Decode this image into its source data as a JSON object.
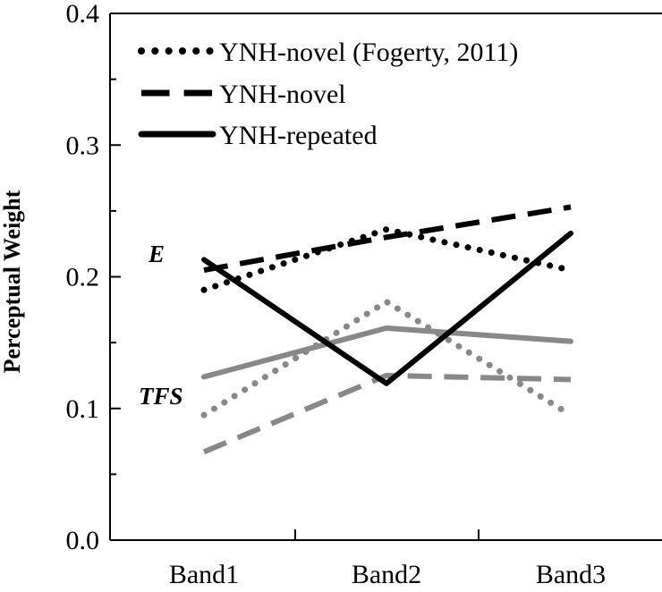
{
  "chart_data": {
    "type": "line",
    "categories": [
      "Band1",
      "Band2",
      "Band3"
    ],
    "ylabel": "Perceptual Weight",
    "xlabel": "",
    "ylim": [
      0,
      0.4
    ],
    "yticks": [
      "0.0",
      "0.1",
      "0.2",
      "0.3",
      "0.4"
    ],
    "grid": false,
    "legend_position": "top-left",
    "annotations": [
      {
        "text": "E",
        "anchor_series_group": "E"
      },
      {
        "text": "TFS",
        "anchor_series_group": "TFS"
      }
    ],
    "series": [
      {
        "name": "YNH-novel (Fogerty, 2011)",
        "group": "E",
        "style": "dotted",
        "color": "#000000",
        "values": [
          0.19,
          0.236,
          0.205
        ]
      },
      {
        "name": "YNH-novel",
        "group": "E",
        "style": "dashed",
        "color": "#000000",
        "values": [
          0.205,
          0.23,
          0.253
        ]
      },
      {
        "name": "YNH-repeated",
        "group": "E",
        "style": "solid",
        "color": "#000000",
        "values": [
          0.213,
          0.119,
          0.233
        ]
      },
      {
        "name": "YNH-novel (Fogerty, 2011)",
        "group": "TFS",
        "style": "dotted",
        "color": "#888888",
        "values": [
          0.095,
          0.181,
          0.095
        ]
      },
      {
        "name": "YNH-novel",
        "group": "TFS",
        "style": "dashed",
        "color": "#888888",
        "values": [
          0.067,
          0.125,
          0.122
        ]
      },
      {
        "name": "YNH-repeated",
        "group": "TFS",
        "style": "solid",
        "color": "#888888",
        "values": [
          0.124,
          0.161,
          0.151
        ]
      }
    ],
    "legend": [
      {
        "label": "YNH-novel (Fogerty, 2011)",
        "style": "dotted"
      },
      {
        "label": "YNH-novel",
        "style": "dashed"
      },
      {
        "label": "YNH-repeated",
        "style": "solid"
      }
    ]
  }
}
